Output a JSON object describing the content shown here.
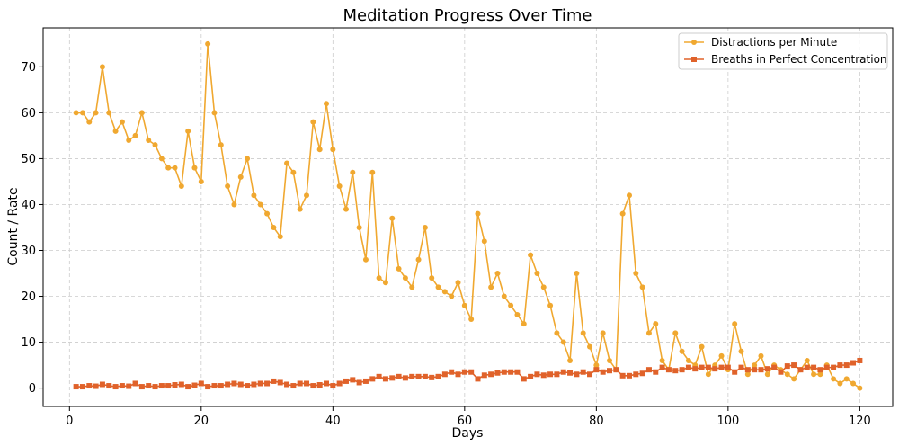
{
  "chart_data": {
    "type": "line",
    "title": "Meditation Progress Over Time",
    "xlabel": "Days",
    "ylabel": "Count / Rate",
    "xlim": [
      -4,
      125
    ],
    "ylim": [
      -4,
      78.5
    ],
    "xticks": [
      0,
      20,
      40,
      60,
      80,
      100,
      120
    ],
    "yticks": [
      0,
      10,
      20,
      30,
      40,
      50,
      60,
      70
    ],
    "grid": true,
    "legend_position": "top-right",
    "series": [
      {
        "name": "Distractions per Minute",
        "color": "#f0a830",
        "marker": "circle",
        "x": [
          1,
          2,
          3,
          4,
          5,
          6,
          7,
          8,
          9,
          10,
          11,
          12,
          13,
          14,
          15,
          16,
          17,
          18,
          19,
          20,
          21,
          22,
          23,
          24,
          25,
          26,
          27,
          28,
          29,
          30,
          31,
          32,
          33,
          34,
          35,
          36,
          37,
          38,
          39,
          40,
          41,
          42,
          43,
          44,
          45,
          46,
          47,
          48,
          49,
          50,
          51,
          52,
          53,
          54,
          55,
          56,
          57,
          58,
          59,
          60,
          61,
          62,
          63,
          64,
          65,
          66,
          67,
          68,
          69,
          70,
          71,
          72,
          73,
          74,
          75,
          76,
          77,
          78,
          79,
          80,
          81,
          82,
          83,
          84,
          85,
          86,
          87,
          88,
          89,
          90,
          91,
          92,
          93,
          94,
          95,
          96,
          97,
          98,
          99,
          100,
          101,
          102,
          103,
          104,
          105,
          106,
          107,
          108,
          109,
          110,
          111,
          112,
          113,
          114,
          115,
          116,
          117,
          118,
          119,
          120
        ],
        "values": [
          60,
          60,
          58,
          60,
          70,
          60,
          56,
          58,
          54,
          55,
          60,
          54,
          53,
          50,
          48,
          48,
          44,
          56,
          48,
          45,
          75,
          60,
          53,
          44,
          40,
          46,
          50,
          42,
          40,
          38,
          35,
          33,
          49,
          47,
          39,
          42,
          58,
          52,
          62,
          52,
          44,
          39,
          47,
          35,
          28,
          47,
          24,
          23,
          37,
          26,
          24,
          22,
          28,
          35,
          24,
          22,
          21,
          20,
          23,
          18,
          15,
          38,
          32,
          22,
          25,
          20,
          18,
          16,
          14,
          29,
          25,
          22,
          18,
          12,
          10,
          6,
          25,
          12,
          9,
          5,
          12,
          6,
          4,
          38,
          42,
          25,
          22,
          12,
          14,
          6,
          4,
          12,
          8,
          6,
          5,
          9,
          3,
          5,
          7,
          4,
          14,
          8,
          3,
          5,
          7,
          3,
          5,
          4,
          3,
          2,
          4,
          6,
          3,
          3,
          5,
          2,
          1,
          2,
          1,
          0
        ]
      },
      {
        "name": "Breaths in Perfect Concentration",
        "color": "#e0622a",
        "marker": "square",
        "x": [
          1,
          2,
          3,
          4,
          5,
          6,
          7,
          8,
          9,
          10,
          11,
          12,
          13,
          14,
          15,
          16,
          17,
          18,
          19,
          20,
          21,
          22,
          23,
          24,
          25,
          26,
          27,
          28,
          29,
          30,
          31,
          32,
          33,
          34,
          35,
          36,
          37,
          38,
          39,
          40,
          41,
          42,
          43,
          44,
          45,
          46,
          47,
          48,
          49,
          50,
          51,
          52,
          53,
          54,
          55,
          56,
          57,
          58,
          59,
          60,
          61,
          62,
          63,
          64,
          65,
          66,
          67,
          68,
          69,
          70,
          71,
          72,
          73,
          74,
          75,
          76,
          77,
          78,
          79,
          80,
          81,
          82,
          83,
          84,
          85,
          86,
          87,
          88,
          89,
          90,
          91,
          92,
          93,
          94,
          95,
          96,
          97,
          98,
          99,
          100,
          101,
          102,
          103,
          104,
          105,
          106,
          107,
          108,
          109,
          110,
          111,
          112,
          113,
          114,
          115,
          116,
          117,
          118,
          119,
          120
        ],
        "values": [
          0.3,
          0.3,
          0.5,
          0.4,
          0.8,
          0.5,
          0.3,
          0.5,
          0.4,
          1.0,
          0.3,
          0.5,
          0.3,
          0.5,
          0.5,
          0.7,
          0.8,
          0.3,
          0.6,
          1.0,
          0.3,
          0.5,
          0.5,
          0.8,
          1.0,
          0.8,
          0.5,
          0.8,
          1.0,
          1.0,
          1.5,
          1.2,
          0.8,
          0.5,
          1.0,
          1.0,
          0.5,
          0.7,
          1.0,
          0.5,
          1.0,
          1.5,
          1.8,
          1.2,
          1.5,
          2.0,
          2.5,
          2.0,
          2.2,
          2.5,
          2.2,
          2.5,
          2.5,
          2.5,
          2.3,
          2.5,
          3.0,
          3.5,
          3.0,
          3.5,
          3.5,
          2.0,
          2.8,
          3.0,
          3.3,
          3.5,
          3.5,
          3.5,
          2.0,
          2.5,
          3.0,
          2.8,
          3.0,
          3.0,
          3.5,
          3.3,
          3.0,
          3.5,
          3.0,
          4.0,
          3.5,
          3.8,
          4.0,
          2.7,
          2.7,
          3.0,
          3.2,
          4.0,
          3.5,
          4.5,
          4.0,
          3.8,
          4.0,
          4.5,
          4.2,
          4.5,
          4.5,
          4.2,
          4.5,
          4.5,
          3.5,
          4.5,
          4.0,
          4.0,
          4.0,
          4.2,
          4.5,
          3.5,
          4.8,
          5.0,
          4.0,
          4.5,
          4.5,
          4.0,
          4.5,
          4.5,
          5.0,
          5.0,
          5.5,
          6.0
        ]
      }
    ]
  }
}
